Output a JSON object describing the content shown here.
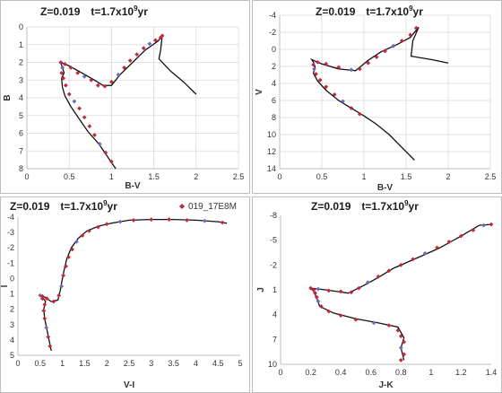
{
  "colors": {
    "track": "#111111",
    "points": "#c0283c",
    "points_alt": "#6a6ab8",
    "grid": "#d9d9d9"
  },
  "chart_data": [
    {
      "type": "scatter",
      "title_main": "Z=0.019",
      "title_age": "t=1.7x10",
      "title_exp": "9",
      "title_unit": "yr",
      "xlabel": "B-V",
      "ylabel": "B",
      "xlim": [
        0,
        2.5
      ],
      "ylim": [
        0,
        8
      ],
      "y_inverted": true,
      "xticks": [
        "0",
        "0.5",
        "1",
        "1.5",
        "2",
        "2.5"
      ],
      "yticks": [
        "0",
        "1",
        "2",
        "3",
        "4",
        "5",
        "6",
        "7",
        "8"
      ],
      "grid": true,
      "track": {
        "x": [
          1.05,
          0.95,
          0.85,
          0.72,
          0.62,
          0.52,
          0.45,
          0.42,
          0.41,
          0.44,
          0.42,
          0.4,
          0.5,
          0.65,
          0.8,
          0.9,
          1.0,
          1.1,
          1.25,
          1.4,
          1.55,
          1.6,
          1.58,
          1.56,
          1.7,
          1.85,
          2.0
        ],
        "y": [
          8.0,
          7.3,
          6.6,
          5.9,
          5.2,
          4.5,
          3.9,
          3.4,
          2.9,
          2.6,
          2.3,
          2.0,
          2.2,
          2.6,
          3.0,
          3.3,
          3.3,
          2.7,
          2.0,
          1.3,
          0.8,
          0.5,
          1.3,
          1.8,
          2.5,
          3.1,
          3.8
        ]
      },
      "points": {
        "x": [
          1.0,
          0.93,
          0.86,
          0.8,
          0.74,
          0.68,
          0.62,
          0.56,
          0.5,
          0.46,
          0.43,
          0.41,
          0.42,
          0.4,
          0.45,
          0.52,
          0.6,
          0.68,
          0.76,
          0.84,
          0.92,
          1.0,
          1.08,
          1.15,
          1.22,
          1.3,
          1.38,
          1.45,
          1.52,
          1.58,
          1.6
        ],
        "y": [
          7.6,
          7.1,
          6.6,
          6.1,
          5.6,
          5.1,
          4.6,
          4.2,
          3.8,
          3.3,
          2.9,
          2.6,
          2.3,
          2.0,
          2.1,
          2.3,
          2.6,
          2.8,
          3.0,
          3.3,
          3.35,
          3.1,
          2.7,
          2.3,
          1.9,
          1.55,
          1.2,
          0.95,
          0.75,
          0.6,
          0.5
        ]
      }
    },
    {
      "type": "scatter",
      "title_main": "Z=0.019",
      "title_age": "t=1.7x10",
      "title_exp": "9",
      "title_unit": "yr",
      "xlabel": "B-V",
      "ylabel": "V",
      "xlim": [
        0,
        2.5
      ],
      "ylim": [
        -4,
        14
      ],
      "y_inverted": true,
      "xticks": [
        "0",
        "0.5",
        "1",
        "1.5",
        "2",
        "2.5"
      ],
      "yticks": [
        "-4",
        "-2",
        "0",
        "2",
        "4",
        "6",
        "8",
        "10",
        "12",
        "14"
      ],
      "grid": true,
      "track": {
        "x": [
          1.6,
          1.45,
          1.3,
          1.15,
          1.0,
          0.85,
          0.7,
          0.55,
          0.45,
          0.4,
          0.42,
          0.4,
          0.38,
          0.5,
          0.7,
          0.9,
          1.05,
          1.2,
          1.4,
          1.55,
          1.65,
          1.58,
          1.56,
          1.8,
          2.0
        ],
        "y": [
          13.0,
          11.5,
          10.0,
          8.8,
          7.8,
          6.9,
          6.0,
          4.8,
          3.7,
          2.8,
          2.1,
          1.5,
          1.2,
          1.7,
          2.3,
          2.5,
          1.3,
          0.3,
          -0.6,
          -1.4,
          -2.6,
          -1.0,
          0.8,
          1.2,
          1.6
        ]
      },
      "points": {
        "x": [
          0.95,
          0.85,
          0.75,
          0.65,
          0.55,
          0.48,
          0.43,
          0.41,
          0.4,
          0.45,
          0.55,
          0.7,
          0.85,
          0.95,
          1.05,
          1.15,
          1.25,
          1.35,
          1.45,
          1.55,
          1.62
        ],
        "y": [
          7.6,
          6.9,
          6.1,
          5.3,
          4.4,
          3.6,
          2.9,
          2.3,
          1.8,
          1.5,
          1.7,
          2.1,
          2.4,
          2.3,
          1.6,
          0.9,
          0.2,
          -0.4,
          -1.0,
          -1.7,
          -2.5
        ]
      }
    },
    {
      "type": "scatter",
      "title_main": "Z=0.019",
      "title_age": "t=1.7x10",
      "title_exp": "9",
      "title_unit": "yr",
      "xlabel": "V-I",
      "ylabel": "I",
      "xlim": [
        0,
        5
      ],
      "ylim": [
        -4,
        5
      ],
      "y_inverted": true,
      "xticks": [
        "0",
        "0.5",
        "1",
        "1.5",
        "2",
        "2.5",
        "3",
        "3.5",
        "4",
        "4.5",
        "5"
      ],
      "yticks": [
        "-4",
        "-3",
        "-2",
        "-1",
        "0",
        "1",
        "2",
        "3",
        "4",
        "5"
      ],
      "grid": false,
      "legend_label": "019_17E8M",
      "track": {
        "x": [
          0.75,
          0.7,
          0.65,
          0.6,
          0.58,
          0.62,
          0.55,
          0.5,
          0.6,
          0.75,
          0.9,
          0.95,
          1.0,
          1.05,
          1.1,
          1.2,
          1.35,
          1.55,
          1.8,
          2.1,
          2.5,
          3.0,
          3.5,
          4.0,
          4.5,
          4.7
        ],
        "y": [
          4.7,
          4.0,
          3.3,
          2.6,
          2.0,
          1.5,
          1.2,
          1.1,
          1.2,
          1.5,
          1.4,
          0.8,
          0.0,
          -0.7,
          -1.3,
          -2.0,
          -2.6,
          -3.1,
          -3.4,
          -3.6,
          -3.8,
          -3.85,
          -3.85,
          -3.8,
          -3.7,
          -3.6
        ]
      },
      "points": {
        "x": [
          0.72,
          0.68,
          0.64,
          0.6,
          0.58,
          0.6,
          0.55,
          0.5,
          0.55,
          0.65,
          0.8,
          0.92,
          0.98,
          1.02,
          1.08,
          1.14,
          1.22,
          1.32,
          1.45,
          1.6,
          1.8,
          2.0,
          2.3,
          2.6,
          3.0,
          3.4,
          3.8,
          4.2,
          4.6
        ],
        "y": [
          4.4,
          3.8,
          3.2,
          2.6,
          2.1,
          1.7,
          1.3,
          1.1,
          1.15,
          1.3,
          1.5,
          1.1,
          0.5,
          -0.2,
          -0.8,
          -1.4,
          -1.9,
          -2.4,
          -2.8,
          -3.1,
          -3.35,
          -3.55,
          -3.7,
          -3.8,
          -3.85,
          -3.85,
          -3.8,
          -3.75,
          -3.65
        ]
      }
    },
    {
      "type": "scatter",
      "title_main": "Z=0.019",
      "title_age": "t=1.7x10",
      "title_exp": "9",
      "title_unit": "yr",
      "xlabel": "J-K",
      "ylabel": "J",
      "xlim": [
        0,
        1.4
      ],
      "ylim": [
        -8,
        10
      ],
      "y_inverted": true,
      "xticks": [
        "0",
        "0.2",
        "0.4",
        "0.6",
        "0.8",
        "1",
        "1.2",
        "1.4"
      ],
      "yticks": [
        "-8",
        "-5",
        "-2",
        "1",
        "4",
        "7",
        "10"
      ],
      "grid": false,
      "track": {
        "x": [
          0.82,
          0.8,
          0.82,
          0.78,
          0.65,
          0.5,
          0.35,
          0.26,
          0.24,
          0.22,
          0.2,
          0.3,
          0.45,
          0.55,
          0.65,
          0.75,
          0.9,
          1.05,
          1.2,
          1.32,
          1.4
        ],
        "y": [
          9.5,
          8.0,
          6.8,
          5.5,
          5.0,
          4.5,
          3.8,
          3.0,
          2.0,
          1.2,
          0.8,
          1.0,
          1.4,
          0.5,
          -0.5,
          -1.6,
          -2.8,
          -4.0,
          -5.5,
          -6.8,
          -6.9
        ]
      },
      "points": {
        "x": [
          0.8,
          0.82,
          0.8,
          0.82,
          0.8,
          0.78,
          0.72,
          0.62,
          0.5,
          0.4,
          0.32,
          0.27,
          0.25,
          0.24,
          0.23,
          0.22,
          0.2,
          0.25,
          0.32,
          0.4,
          0.47,
          0.52,
          0.58,
          0.65,
          0.72,
          0.8,
          0.88,
          0.96,
          1.04,
          1.12,
          1.2,
          1.28,
          1.35,
          1.4
        ],
        "y": [
          9.5,
          8.8,
          8.0,
          7.3,
          6.6,
          5.9,
          5.3,
          5.0,
          4.6,
          4.1,
          3.6,
          3.0,
          2.4,
          1.9,
          1.4,
          1.0,
          0.8,
          0.9,
          1.1,
          1.2,
          1.3,
          0.8,
          0.1,
          -0.6,
          -1.3,
          -2.0,
          -2.7,
          -3.4,
          -4.1,
          -4.8,
          -5.5,
          -6.2,
          -6.8,
          -6.9
        ]
      }
    }
  ]
}
